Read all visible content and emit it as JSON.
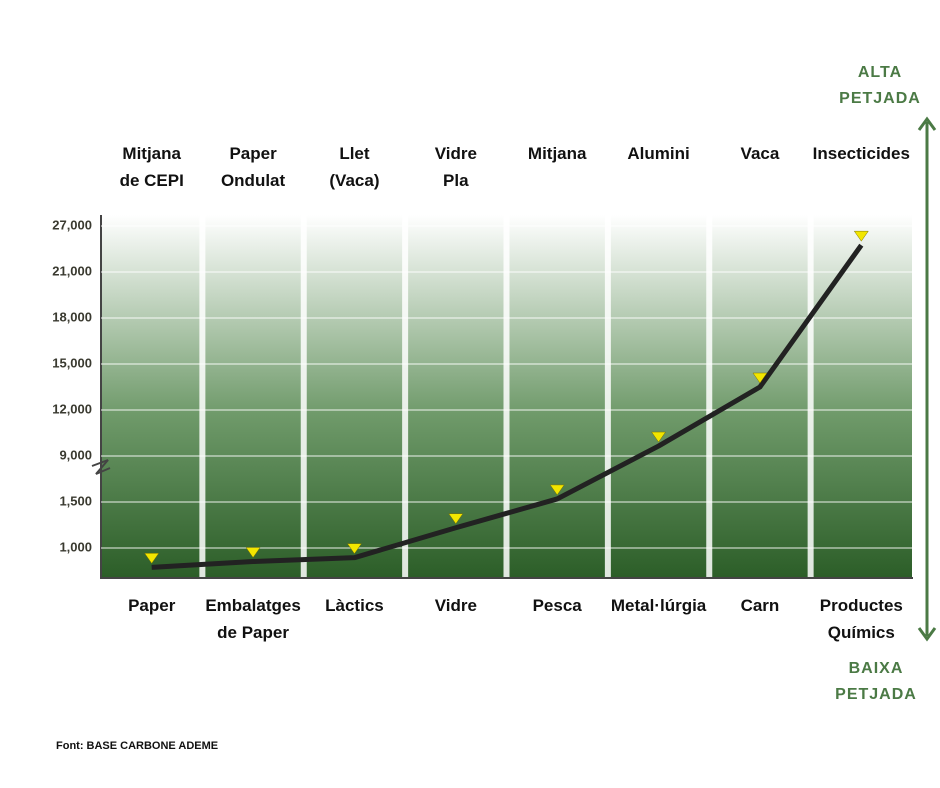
{
  "chart_data": {
    "type": "line",
    "categories": [
      "Paper",
      "Embalatges\nde Paper",
      "Làctics",
      "Vidre",
      "Pesca",
      "Metal·lúrgia",
      "Carn",
      "Productes\nQuímics"
    ],
    "top_labels": [
      "Mitjana\nde CEPI",
      "Paper\nOndulat",
      "Llet\n(Vaca)",
      "Vidre\nPla",
      "Mitjana",
      "Alumini",
      "Vaca",
      "Insecticides"
    ],
    "values": [
      800,
      860,
      900,
      1220,
      2000,
      9650,
      13500,
      24500
    ],
    "color": "#222222",
    "marker_color": "#f2e600",
    "ylim": [
      700,
      28000
    ],
    "yticks": [
      {
        "value": 1000,
        "label": "1,000"
      },
      {
        "value": 1500,
        "label": "1,500"
      },
      {
        "value": 9000,
        "label": "9,000"
      },
      {
        "value": 12000,
        "label": "12,000"
      },
      {
        "value": 15000,
        "label": "15,000"
      },
      {
        "value": 18000,
        "label": "18,000"
      },
      {
        "value": 21000,
        "label": "21,000"
      },
      {
        "value": 27000,
        "label": "27,000"
      }
    ],
    "grid": true,
    "scale_top_label": "ALTA\nPETJADA",
    "scale_bottom_label": "BAIXA\nPETJADA",
    "source": "Font: BASE CARBONE ADEME"
  }
}
